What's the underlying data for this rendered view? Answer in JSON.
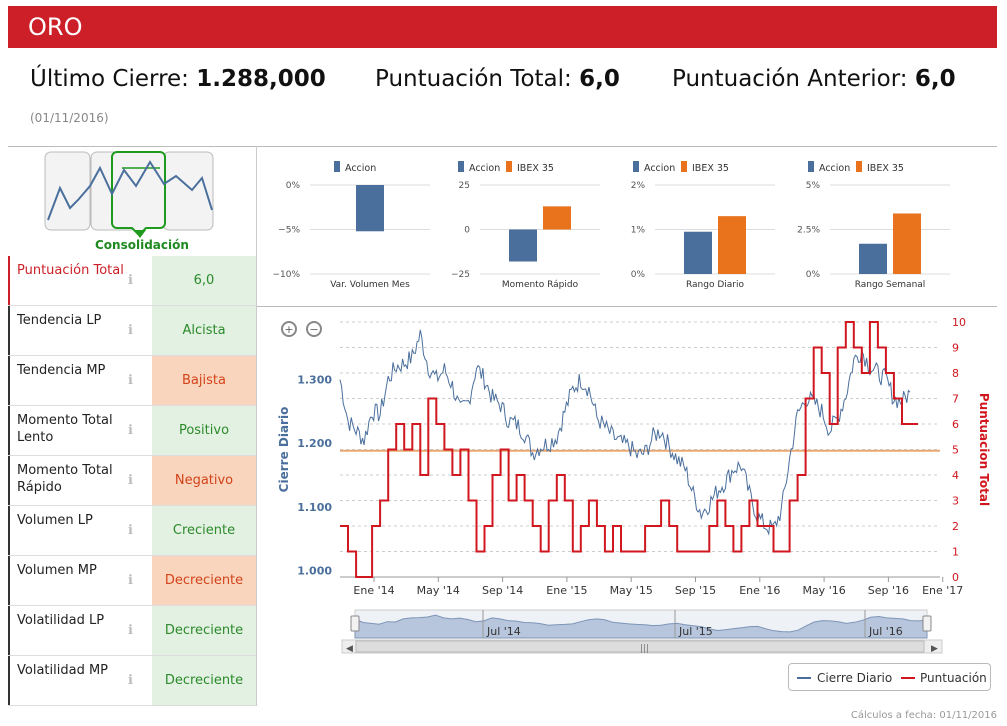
{
  "title": "ORO",
  "summary": {
    "last_close_label": "Último Cierre:",
    "last_close_value": "1.288,000",
    "total_score_label": "Puntuación Total:",
    "total_score_value": "6,0",
    "prev_score_label": "Puntuación Anterior:",
    "prev_score_value": "6,0",
    "date": "(01/11/2016)"
  },
  "pattern_label": "Consolidación",
  "indicators": [
    {
      "label": "Puntuación Total",
      "value": "6,0",
      "tone": "pos"
    },
    {
      "label": "Tendencia LP",
      "value": "Alcista",
      "tone": "pos"
    },
    {
      "label": "Tendencia MP",
      "value": "Bajista",
      "tone": "neg"
    },
    {
      "label": "Momento Total Lento",
      "value": "Positivo",
      "tone": "pos"
    },
    {
      "label": "Momento Total Rápido",
      "value": "Negativo",
      "tone": "neg"
    },
    {
      "label": "Volumen LP",
      "value": "Creciente",
      "tone": "pos"
    },
    {
      "label": "Volumen MP",
      "value": "Decreciente",
      "tone": "neg"
    },
    {
      "label": "Volatilidad LP",
      "value": "Decreciente",
      "tone": "pos"
    },
    {
      "label": "Volatilidad MP",
      "value": "Decreciente",
      "tone": "pos"
    }
  ],
  "info_icon": "info-icon",
  "chart_data": [
    {
      "type": "bar",
      "legend": [
        "Accion"
      ],
      "ticks": [
        "0%",
        "−5%",
        "−10%"
      ],
      "ylim": [
        -10,
        0
      ],
      "categories": [
        "Var. Volumen Mes"
      ],
      "series": [
        {
          "name": "Accion",
          "values": [
            -5.2
          ]
        }
      ]
    },
    {
      "type": "bar",
      "legend": [
        "Accion",
        "IBEX 35"
      ],
      "ticks": [
        "25",
        "0",
        "−25"
      ],
      "ylim": [
        -25,
        25
      ],
      "categories": [
        "Momento Rápido"
      ],
      "series": [
        {
          "name": "Accion",
          "values": [
            -18
          ]
        },
        {
          "name": "IBEX 35",
          "values": [
            13
          ]
        }
      ]
    },
    {
      "type": "bar",
      "legend": [
        "Accion",
        "IBEX 35"
      ],
      "ticks": [
        "2%",
        "1%",
        "0%"
      ],
      "ylim": [
        0,
        2
      ],
      "categories": [
        "Rango Diario"
      ],
      "series": [
        {
          "name": "Accion",
          "values": [
            0.95
          ]
        },
        {
          "name": "IBEX 35",
          "values": [
            1.3
          ]
        }
      ]
    },
    {
      "type": "bar",
      "legend": [
        "Accion",
        "IBEX 35"
      ],
      "ticks": [
        "5%",
        "2.5%",
        "0%"
      ],
      "ylim": [
        0,
        5
      ],
      "categories": [
        "Rango Semanal"
      ],
      "series": [
        {
          "name": "Accion",
          "values": [
            1.7
          ]
        },
        {
          "name": "IBEX 35",
          "values": [
            3.4
          ]
        }
      ]
    },
    {
      "type": "line",
      "ylabel": "Cierre Diario",
      "y2label": "Puntuacion Total",
      "yticks": [
        "1.300",
        "1.200",
        "1.100",
        "1.000"
      ],
      "y2ticks": [
        "10",
        "9",
        "8",
        "7",
        "6",
        "5",
        "4",
        "3",
        "2",
        "1",
        "0"
      ],
      "xticks": [
        "Ene '14",
        "May '14",
        "Sep '14",
        "Ene '15",
        "May '15",
        "Sep '15",
        "Ene '16",
        "May '16",
        "Sep '16",
        "Ene '17"
      ],
      "navigator_ticks": [
        "Jul '14",
        "Jul '15",
        "Jul '16"
      ],
      "reference_level": 1188,
      "series": [
        {
          "name": "Cierre Diario",
          "color": "#4a6f9c",
          "values": [
            1300,
            1235,
            1220,
            1205,
            1250,
            1245,
            1300,
            1320,
            1325,
            1335,
            1370,
            1320,
            1300,
            1315,
            1290,
            1250,
            1265,
            1320,
            1300,
            1270,
            1260,
            1235,
            1230,
            1215,
            1185,
            1195,
            1200,
            1210,
            1250,
            1285,
            1300,
            1285,
            1240,
            1225,
            1210,
            1200,
            1195,
            1180,
            1185,
            1210,
            1220,
            1195,
            1175,
            1160,
            1120,
            1090,
            1105,
            1125,
            1140,
            1160,
            1165,
            1120,
            1085,
            1070,
            1065,
            1095,
            1175,
            1245,
            1270,
            1265,
            1250,
            1220,
            1240,
            1275,
            1330,
            1345,
            1320,
            1310,
            1300,
            1270,
            1265,
            1280
          ]
        },
        {
          "name": "Puntuación",
          "color": "#d0161e",
          "values": [
            2,
            1,
            0,
            0,
            2,
            3,
            5,
            6,
            5,
            6,
            4,
            7,
            6,
            5,
            4,
            5,
            3,
            1,
            2,
            4,
            5,
            3,
            4,
            3,
            2,
            1,
            3,
            4,
            3,
            1,
            2,
            3,
            2,
            1,
            2,
            1,
            1,
            1,
            2,
            2,
            3,
            2,
            1,
            1,
            1,
            1,
            2,
            3,
            2,
            1,
            2,
            3,
            2,
            2,
            1,
            1,
            3,
            4,
            7,
            9,
            8,
            6,
            9,
            10,
            9,
            8,
            10,
            9,
            8,
            7,
            6,
            6
          ]
        }
      ]
    }
  ],
  "legend": {
    "close": "Cierre Diario",
    "score": "Puntuación"
  },
  "footnote": "Cálculos a fecha: 01/11/2016",
  "colors": {
    "accent": "#cc1f27",
    "accion": "#4a6f9c",
    "ibex": "#e8731c",
    "positive_bg": "#e3f1e2",
    "negative_bg": "#f9d5bd"
  }
}
